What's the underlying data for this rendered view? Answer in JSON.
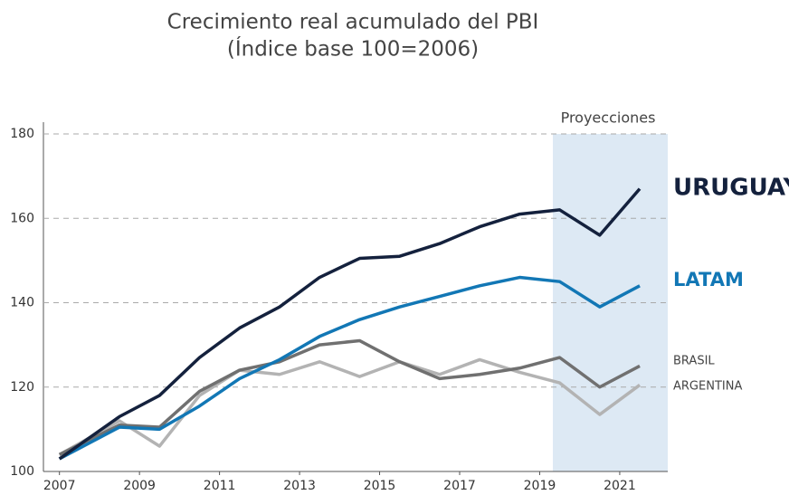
{
  "chart_data": {
    "type": "line",
    "title": "Crecimiento real acumulado del PBI",
    "subtitle": "(Índice base 100=2006)",
    "annotation": "Proyecciones",
    "x": [
      2007,
      2008.5,
      2009.5,
      2010.5,
      2011.5,
      2012.5,
      2013.5,
      2014.5,
      2015.5,
      2016.5,
      2017.5,
      2018.5,
      2019.5,
      2020.5,
      2021.5
    ],
    "series": [
      {
        "name": "ARGENTINA",
        "color": "#b3b3b3",
        "values": [
          104,
          112,
          106,
          118,
          124,
          123,
          126,
          122.5,
          126,
          123,
          126.5,
          123.5,
          121,
          113.5,
          120.5
        ]
      },
      {
        "name": "BRASIL",
        "color": "#707070",
        "values": [
          104,
          111,
          110.5,
          119,
          124,
          126,
          130,
          131,
          126,
          122,
          123,
          124.5,
          127,
          120,
          125
        ]
      },
      {
        "name": "LATAM",
        "color": "#1277b5",
        "values": [
          103,
          110.5,
          110,
          115.5,
          122,
          126.5,
          132,
          136,
          139,
          141.5,
          144,
          146,
          145,
          139,
          144
        ]
      },
      {
        "name": "URUGUAY",
        "color": "#14213d",
        "values": [
          103,
          113,
          118,
          127,
          134,
          139,
          146,
          150.5,
          151,
          154,
          158,
          161,
          162,
          156,
          167
        ]
      }
    ],
    "xlim": [
      2006.6,
      2022.2
    ],
    "xticks": [
      2007,
      2009,
      2011,
      2013,
      2015,
      2017,
      2019,
      2021
    ],
    "ylim": [
      100,
      180
    ],
    "yticks": [
      100,
      120,
      140,
      160,
      180
    ],
    "grid": true
  }
}
